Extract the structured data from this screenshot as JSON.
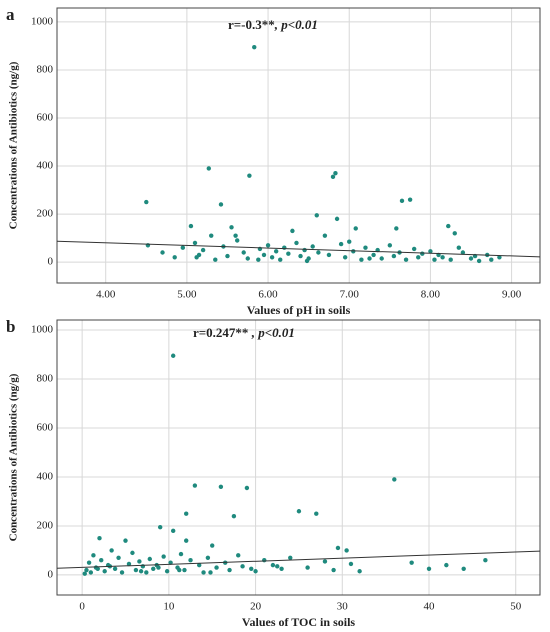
{
  "chart_data": [
    {
      "type": "scatter",
      "panel_label": "a",
      "annotation": [
        "r=-0.3**",
        ", p<0.01"
      ],
      "xlabel": "Values of pH in soils",
      "ylabel": "Concentrations of Antibiotics (ng/g)",
      "color": "#1f8a7e",
      "grid": true,
      "xlim": [
        3.4,
        9.35
      ],
      "ylim": [
        -87,
        1058
      ],
      "xticks": [
        {
          "value": 4,
          "label": "4.00"
        },
        {
          "value": 5,
          "label": "5.00"
        },
        {
          "value": 6,
          "label": "6.00"
        },
        {
          "value": 7,
          "label": "7.00"
        },
        {
          "value": 8,
          "label": "8.00"
        },
        {
          "value": 9,
          "label": "9.00"
        }
      ],
      "yticks": [
        0,
        200,
        400,
        600,
        800,
        1000
      ],
      "trend": {
        "x": [
          3.4,
          9.35
        ],
        "y": [
          87,
          22
        ]
      },
      "x": [
        5.83,
        5.27,
        5.77,
        6.83,
        6.8,
        4.5,
        5.42,
        7.65,
        7.75,
        6.6,
        6.85,
        8.22,
        5.05,
        5.55,
        7.08,
        7.58,
        8.3,
        5.3,
        5.6,
        6.3,
        6.7,
        4.52,
        4.7,
        4.85,
        4.95,
        5.1,
        5.15,
        5.2,
        5.35,
        5.45,
        5.5,
        5.62,
        5.7,
        5.75,
        5.9,
        5.95,
        6.0,
        6.05,
        6.1,
        6.15,
        6.2,
        6.25,
        6.35,
        6.4,
        6.45,
        6.5,
        6.55,
        6.62,
        6.75,
        6.9,
        6.95,
        7.0,
        7.05,
        7.15,
        7.2,
        7.3,
        7.35,
        7.4,
        7.5,
        7.55,
        7.62,
        7.7,
        7.8,
        7.85,
        7.9,
        8.0,
        8.05,
        8.1,
        8.15,
        8.35,
        8.4,
        8.5,
        8.55,
        8.6,
        8.7,
        8.75,
        8.85,
        5.12,
        5.88,
        6.48,
        7.25,
        8.25
      ],
      "y": [
        895,
        390,
        360,
        370,
        355,
        250,
        240,
        255,
        260,
        195,
        180,
        150,
        150,
        145,
        140,
        140,
        120,
        110,
        110,
        130,
        110,
        70,
        40,
        20,
        60,
        80,
        30,
        50,
        10,
        65,
        25,
        90,
        40,
        15,
        55,
        30,
        70,
        20,
        45,
        10,
        60,
        35,
        80,
        25,
        50,
        15,
        65,
        40,
        30,
        75,
        20,
        85,
        45,
        10,
        60,
        30,
        50,
        15,
        70,
        25,
        40,
        10,
        55,
        20,
        35,
        45,
        10,
        30,
        20,
        60,
        40,
        15,
        25,
        5,
        30,
        10,
        20,
        20,
        10,
        5,
        15,
        10
      ]
    },
    {
      "type": "scatter",
      "panel_label": "b",
      "annotation": [
        "r=0.247** ",
        ", p<0.01"
      ],
      "xlabel": "Values of TOC in soils",
      "ylabel": "Concentrations of Antibiotics (ng/g)",
      "color": "#1f8a7e",
      "grid": true,
      "xlim": [
        -2.9,
        52.8
      ],
      "ylim": [
        -82,
        1041
      ],
      "xticks": [
        0,
        10,
        20,
        30,
        40,
        50
      ],
      "yticks": [
        0,
        200,
        400,
        600,
        800,
        1000
      ],
      "trend": {
        "x": [
          -2.9,
          52.8
        ],
        "y": [
          27,
          97
        ]
      },
      "x": [
        10.5,
        13,
        16,
        19,
        36,
        25,
        27,
        12,
        17.5,
        9,
        10.5,
        2,
        5,
        12,
        15,
        29.5,
        30.5,
        38,
        40,
        44,
        46.5,
        42,
        0.5,
        0.8,
        1,
        1.3,
        1.6,
        2.2,
        2.6,
        3,
        3.4,
        3.8,
        4.2,
        4.6,
        5.4,
        5.8,
        6.2,
        6.6,
        7,
        7.4,
        7.8,
        8.2,
        8.6,
        9.4,
        9.8,
        10.2,
        11,
        11.4,
        11.8,
        12.5,
        13.5,
        14,
        14.5,
        15.5,
        16.5,
        17,
        18,
        18.5,
        20,
        21,
        22,
        23,
        24,
        26,
        28,
        29,
        31,
        32,
        0.3,
        1.8,
        3.2,
        6.8,
        8.8,
        11.2,
        14.8,
        19.5,
        22.5
      ],
      "y": [
        895,
        365,
        360,
        355,
        390,
        260,
        250,
        250,
        240,
        195,
        180,
        150,
        140,
        140,
        120,
        110,
        100,
        50,
        25,
        25,
        60,
        40,
        20,
        50,
        10,
        80,
        30,
        60,
        15,
        40,
        100,
        25,
        70,
        10,
        45,
        90,
        20,
        55,
        35,
        10,
        65,
        25,
        40,
        75,
        15,
        50,
        30,
        85,
        20,
        60,
        40,
        10,
        70,
        30,
        50,
        20,
        80,
        35,
        15,
        60,
        40,
        25,
        70,
        30,
        55,
        20,
        45,
        15,
        5,
        25,
        35,
        15,
        30,
        20,
        10,
        25,
        35
      ]
    }
  ]
}
